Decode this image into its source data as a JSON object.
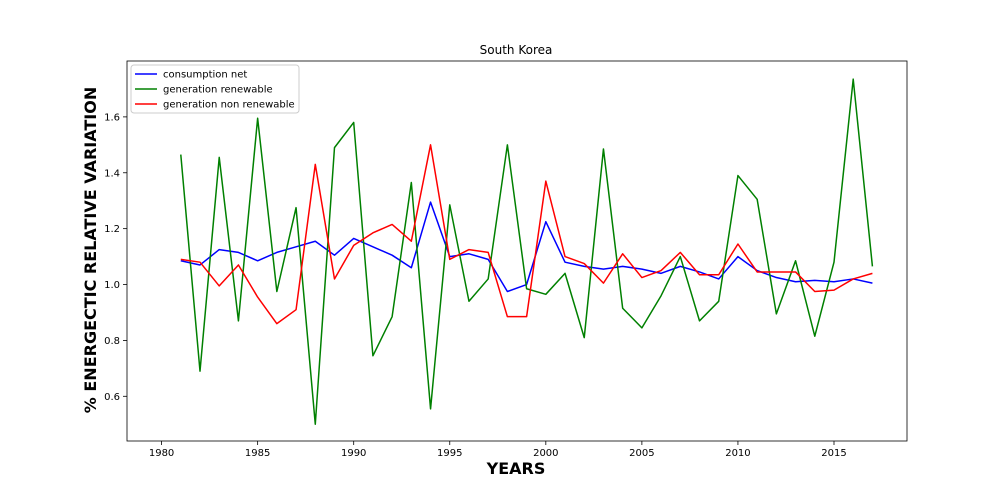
{
  "chart_data": {
    "type": "line",
    "title": "South Korea",
    "xlabel": "YEARS",
    "ylabel": "% ENERGECTIC RELATIVE VARIATION",
    "xlim": [
      1978.2,
      2018.8
    ],
    "ylim": [
      0.44,
      1.8
    ],
    "xticks": [
      1980,
      1985,
      1990,
      1995,
      2000,
      2005,
      2010,
      2015
    ],
    "xtick_labels": [
      "1980",
      "1985",
      "1990",
      "1995",
      "2000",
      "2005",
      "2010",
      "2015"
    ],
    "yticks": [
      0.6,
      0.8,
      1.0,
      1.2,
      1.4,
      1.6
    ],
    "ytick_labels": [
      "0.6",
      "0.8",
      "1.0",
      "1.2",
      "1.4",
      "1.6"
    ],
    "legend_position": "upper-left",
    "grid": false,
    "x": [
      1981,
      1982,
      1983,
      1984,
      1985,
      1986,
      1987,
      1988,
      1989,
      1990,
      1991,
      1992,
      1993,
      1994,
      1995,
      1996,
      1997,
      1998,
      1999,
      2000,
      2001,
      2002,
      2003,
      2004,
      2005,
      2006,
      2007,
      2008,
      2009,
      2010,
      2011,
      2012,
      2013,
      2014,
      2015,
      2016,
      2017
    ],
    "series": [
      {
        "name": "consumption net",
        "color": "#0000ff",
        "values": [
          1.085,
          1.07,
          1.125,
          1.115,
          1.085,
          1.115,
          1.135,
          1.155,
          1.105,
          1.165,
          1.135,
          1.105,
          1.06,
          1.295,
          1.1,
          1.11,
          1.09,
          0.975,
          1.0,
          1.225,
          1.08,
          1.065,
          1.055,
          1.065,
          1.055,
          1.04,
          1.065,
          1.045,
          1.02,
          1.1,
          1.05,
          1.025,
          1.01,
          1.015,
          1.01,
          1.02,
          1.005
        ]
      },
      {
        "name": "generation renewable",
        "color": "#008000",
        "values": [
          1.465,
          0.69,
          1.455,
          0.87,
          1.595,
          0.975,
          1.275,
          0.5,
          1.49,
          1.58,
          0.745,
          0.885,
          1.365,
          0.555,
          1.285,
          0.94,
          1.02,
          1.5,
          0.985,
          0.965,
          1.04,
          0.81,
          1.485,
          0.915,
          0.845,
          0.96,
          1.1,
          0.87,
          0.94,
          1.39,
          1.305,
          0.895,
          1.085,
          0.815,
          1.08,
          1.735,
          1.065
        ]
      },
      {
        "name": "generation non renewable",
        "color": "#ff0000",
        "values": [
          1.09,
          1.08,
          0.995,
          1.07,
          0.955,
          0.86,
          0.91,
          1.43,
          1.02,
          1.14,
          1.185,
          1.215,
          1.155,
          1.5,
          1.09,
          1.125,
          1.115,
          0.885,
          0.885,
          1.37,
          1.1,
          1.075,
          1.005,
          1.11,
          1.025,
          1.05,
          1.115,
          1.035,
          1.035,
          1.145,
          1.045,
          1.045,
          1.045,
          0.975,
          0.98,
          1.02,
          1.04
        ]
      }
    ]
  }
}
